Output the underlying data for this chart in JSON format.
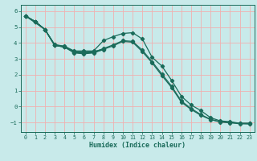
{
  "background_color": "#c8eaea",
  "grid_color": "#f0b0b0",
  "line_color": "#1a6b5a",
  "xlabel": "Humidex (Indice chaleur)",
  "xlim": [
    -0.5,
    23.5
  ],
  "ylim": [
    -1.6,
    6.4
  ],
  "yticks": [
    -1,
    0,
    1,
    2,
    3,
    4,
    5,
    6
  ],
  "xticks": [
    0,
    1,
    2,
    3,
    4,
    5,
    6,
    7,
    8,
    9,
    10,
    11,
    12,
    13,
    14,
    15,
    16,
    17,
    18,
    19,
    20,
    21,
    22,
    23
  ],
  "lines": [
    {
      "x": [
        0,
        1,
        2,
        3,
        4,
        5,
        6,
        7,
        8,
        9,
        10,
        11,
        12,
        13,
        14,
        15,
        16,
        17,
        18,
        19,
        20,
        21,
        22,
        23
      ],
      "y": [
        5.7,
        5.35,
        4.85,
        3.9,
        3.8,
        3.5,
        3.5,
        3.5,
        4.15,
        4.4,
        4.6,
        4.65,
        4.25,
        3.1,
        2.55,
        1.65,
        0.65,
        0.1,
        -0.25,
        -0.7,
        -0.9,
        -0.95,
        -1.05,
        -1.05
      ]
    },
    {
      "x": [
        0,
        1,
        2,
        3,
        4,
        5,
        6,
        7,
        8,
        9,
        10,
        11,
        12,
        13,
        14,
        15,
        16,
        17,
        18,
        19,
        20,
        21,
        22,
        23
      ],
      "y": [
        5.7,
        5.35,
        4.85,
        3.85,
        3.75,
        3.42,
        3.38,
        3.42,
        3.65,
        3.88,
        4.15,
        4.1,
        3.55,
        2.82,
        2.05,
        1.28,
        0.35,
        -0.12,
        -0.5,
        -0.8,
        -0.95,
        -1.0,
        -1.05,
        -1.05
      ]
    },
    {
      "x": [
        0,
        1,
        2,
        3,
        4,
        5,
        6,
        7,
        8,
        9,
        10,
        11,
        12,
        13,
        14,
        15,
        16,
        17,
        18,
        19,
        20,
        21,
        22,
        23
      ],
      "y": [
        5.7,
        5.35,
        4.85,
        3.85,
        3.75,
        3.38,
        3.32,
        3.38,
        3.6,
        3.82,
        4.1,
        4.05,
        3.45,
        2.75,
        1.95,
        1.2,
        0.28,
        -0.18,
        -0.55,
        -0.82,
        -0.97,
        -1.02,
        -1.08,
        -1.1
      ]
    },
    {
      "x": [
        0,
        1,
        2,
        3,
        4,
        5,
        6,
        7,
        8
      ],
      "y": [
        5.7,
        5.35,
        4.85,
        3.88,
        3.78,
        3.45,
        3.42,
        3.45,
        3.62
      ]
    },
    {
      "x": [
        0,
        2,
        3,
        4,
        5,
        6,
        7,
        8
      ],
      "y": [
        5.7,
        4.85,
        3.85,
        3.75,
        3.4,
        3.35,
        3.4,
        3.58
      ]
    }
  ]
}
